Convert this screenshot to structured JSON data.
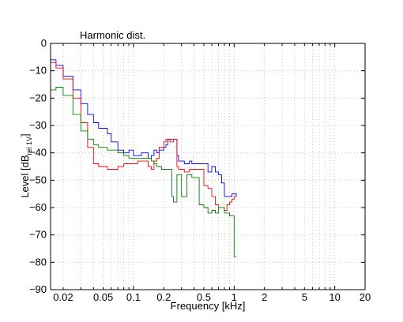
{
  "chart_data": {
    "type": "line",
    "title": "Harmonic dist.",
    "xlabel": "Frequency [kHz]",
    "ylabel": {
      "main": "Level [dB",
      "sub": "rel 1V",
      "close": "]"
    },
    "x_scale": "log",
    "xlim": [
      0.015,
      20
    ],
    "ylim": [
      -90,
      0
    ],
    "grid": true,
    "x_ticks": [
      {
        "value": 0.02,
        "label": "0.02"
      },
      {
        "value": 0.05,
        "label": "0.05"
      },
      {
        "value": 0.1,
        "label": "0.1"
      },
      {
        "value": 0.2,
        "label": "0.2"
      },
      {
        "value": 0.5,
        "label": "0.5"
      },
      {
        "value": 1,
        "label": "1"
      },
      {
        "value": 2,
        "label": "2"
      },
      {
        "value": 5,
        "label": "5"
      },
      {
        "value": 10,
        "label": "10"
      },
      {
        "value": 20,
        "label": "20"
      }
    ],
    "y_ticks": [
      {
        "value": 0,
        "label": "0"
      },
      {
        "value": -10,
        "label": "−10"
      },
      {
        "value": -20,
        "label": "−20"
      },
      {
        "value": -30,
        "label": "−30"
      },
      {
        "value": -40,
        "label": "−40"
      },
      {
        "value": -50,
        "label": "−50"
      },
      {
        "value": -60,
        "label": "−60"
      },
      {
        "value": -70,
        "label": "−70"
      },
      {
        "value": -80,
        "label": "−80"
      },
      {
        "value": -90,
        "label": "−90"
      }
    ],
    "series": [
      {
        "color": "#0000ff",
        "x": [
          0.015,
          0.017,
          0.02,
          0.025,
          0.03,
          0.035,
          0.04,
          0.045,
          0.05,
          0.055,
          0.06,
          0.07,
          0.08,
          0.09,
          0.1,
          0.11,
          0.12,
          0.13,
          0.14,
          0.15,
          0.16,
          0.17,
          0.18,
          0.19,
          0.2,
          0.21,
          0.22,
          0.23,
          0.24,
          0.25,
          0.27,
          0.28,
          0.3,
          0.32,
          0.34,
          0.36,
          0.38,
          0.4,
          0.45,
          0.5,
          0.55,
          0.6,
          0.65,
          0.7,
          0.75,
          0.8,
          0.85,
          0.9,
          0.95,
          1.0,
          1.05
        ],
        "y": [
          -6,
          -8,
          -12,
          -17,
          -22,
          -26,
          -29,
          -31,
          -31,
          -33,
          -36,
          -39,
          -40,
          -39,
          -41,
          -41,
          -40,
          -40,
          -42,
          -41,
          -39,
          -40,
          -39,
          -39,
          -38,
          -37,
          -35,
          -35,
          -35,
          -35,
          -41,
          -43,
          -43,
          -44,
          -44,
          -43,
          -44,
          -44,
          -44,
          -44,
          -47,
          -45,
          -47,
          -48,
          -51,
          -56,
          -56,
          -56,
          -55,
          -55,
          -56
        ]
      },
      {
        "color": "#ff0000",
        "x": [
          0.015,
          0.017,
          0.02,
          0.025,
          0.03,
          0.035,
          0.04,
          0.045,
          0.05,
          0.055,
          0.06,
          0.07,
          0.08,
          0.09,
          0.1,
          0.11,
          0.12,
          0.13,
          0.14,
          0.15,
          0.16,
          0.17,
          0.18,
          0.19,
          0.2,
          0.21,
          0.22,
          0.23,
          0.24,
          0.25,
          0.27,
          0.28,
          0.3,
          0.32,
          0.34,
          0.36,
          0.38,
          0.4,
          0.45,
          0.5,
          0.55,
          0.6,
          0.65,
          0.7,
          0.75,
          0.8,
          0.85,
          0.9,
          0.95,
          1.0,
          1.05
        ],
        "y": [
          -7,
          -9,
          -13,
          -20,
          -29,
          -38,
          -44,
          -45,
          -45,
          -46,
          -46,
          -45,
          -44,
          -44,
          -44,
          -43,
          -43,
          -43,
          -45,
          -46,
          -43,
          -42,
          -38,
          -38,
          -36,
          -35,
          -35,
          -36,
          -36,
          -35,
          -45,
          -46,
          -46,
          -47,
          -47,
          -46,
          -46,
          -46,
          -46,
          -52,
          -53,
          -56,
          -59,
          -60,
          -60,
          -61,
          -59,
          -58,
          -57,
          -56,
          -56
        ]
      },
      {
        "color": "#008000",
        "x": [
          0.015,
          0.017,
          0.02,
          0.025,
          0.03,
          0.035,
          0.04,
          0.045,
          0.05,
          0.055,
          0.06,
          0.07,
          0.08,
          0.09,
          0.1,
          0.11,
          0.12,
          0.13,
          0.14,
          0.15,
          0.16,
          0.17,
          0.18,
          0.19,
          0.2,
          0.21,
          0.22,
          0.23,
          0.24,
          0.25,
          0.27,
          0.28,
          0.3,
          0.32,
          0.34,
          0.36,
          0.38,
          0.4,
          0.45,
          0.5,
          0.55,
          0.6,
          0.65,
          0.7,
          0.75,
          0.8,
          0.85,
          0.9,
          0.95,
          1.0,
          1.05
        ],
        "y": [
          -17,
          -16,
          -19,
          -26,
          -32,
          -35,
          -37,
          -38,
          -38,
          -39,
          -39,
          -40,
          -41,
          -42,
          -42,
          -42,
          -42,
          -42,
          -42,
          -43,
          -44,
          -45,
          -45,
          -46,
          -46,
          -46,
          -46,
          -46,
          -56,
          -58,
          -48,
          -48,
          -56,
          -56,
          -48,
          -48,
          -49,
          -49,
          -59,
          -60,
          -62,
          -61,
          -62,
          -60,
          -60,
          -62,
          -62,
          -63,
          -63,
          -78,
          -78
        ]
      }
    ]
  }
}
